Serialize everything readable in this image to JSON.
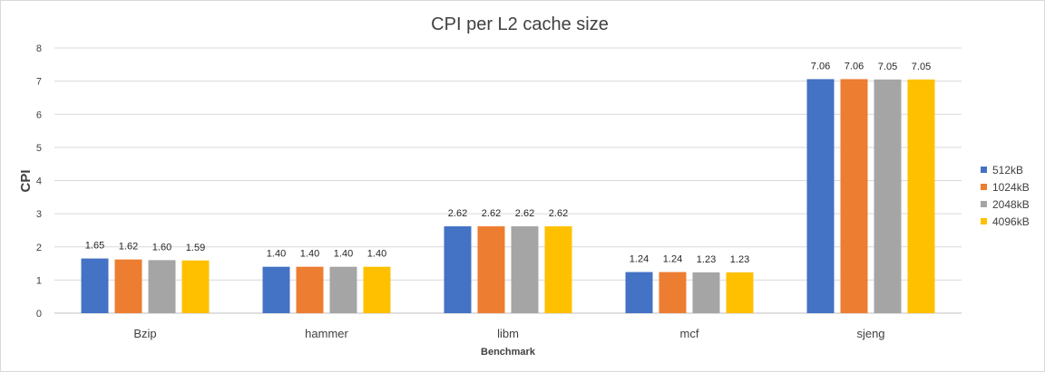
{
  "chart_data": {
    "type": "bar",
    "title": "CPI per L2 cache size",
    "xlabel": "Benchmark",
    "ylabel": "CPI",
    "ylim": [
      0,
      8
    ],
    "yticks": [
      0,
      1,
      2,
      3,
      4,
      5,
      6,
      7,
      8
    ],
    "grid": true,
    "legend_position": "right",
    "categories": [
      "Bzip",
      "hammer",
      "libm",
      "mcf",
      "sjeng"
    ],
    "series": [
      {
        "name": "512kB",
        "color": "#4472c4",
        "values": [
          1.65,
          1.4,
          2.62,
          1.24,
          7.06
        ],
        "labels": [
          "1.65",
          "1.40",
          "2.62",
          "1.24",
          "7.06"
        ]
      },
      {
        "name": "1024kB",
        "color": "#ed7d31",
        "values": [
          1.62,
          1.4,
          2.62,
          1.24,
          7.06
        ],
        "labels": [
          "1.62",
          "1.40",
          "2.62",
          "1.24",
          "7.06"
        ]
      },
      {
        "name": "2048kB",
        "color": "#a5a5a5",
        "values": [
          1.6,
          1.4,
          2.62,
          1.23,
          7.05
        ],
        "labels": [
          "1.60",
          "1.40",
          "2.62",
          "1.23",
          "7.05"
        ]
      },
      {
        "name": "4096kB",
        "color": "#ffc000",
        "values": [
          1.59,
          1.4,
          2.62,
          1.23,
          7.05
        ],
        "labels": [
          "1.59",
          "1.40",
          "2.62",
          "1.23",
          "7.05"
        ]
      }
    ]
  }
}
